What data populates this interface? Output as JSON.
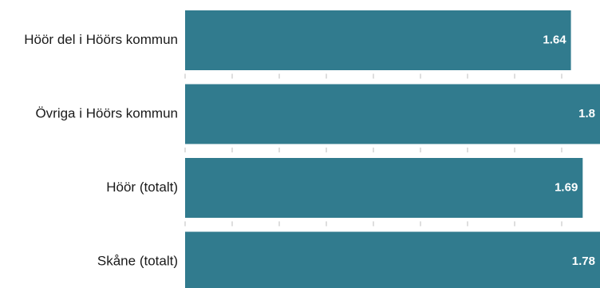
{
  "chart_data": {
    "type": "bar",
    "orientation": "horizontal",
    "categories": [
      "Höör del i Höörs kommun",
      "Övriga i Höörs kommun",
      "Höör (totalt)",
      "Skåne (totalt)"
    ],
    "values": [
      1.64,
      1.8,
      1.69,
      1.78
    ],
    "value_labels": [
      "1.64",
      "1.8",
      "1.69",
      "1.78"
    ],
    "xlim": [
      0,
      1.75
    ],
    "grid": false,
    "bar_color": "#317b8e",
    "label_color": "#ffffff"
  }
}
